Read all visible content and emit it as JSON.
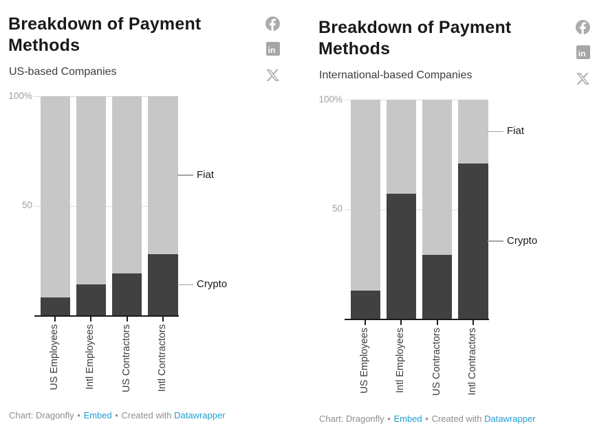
{
  "shared": {
    "colors": {
      "link_blue": "#1e9cd2",
      "crypto_dark": "#414141",
      "fiat_light": "#c7c7c7",
      "gridline": "#dcdcdc",
      "axis": "#1a1a1a"
    },
    "share_icons": [
      "facebook-icon",
      "linkedin-icon",
      "x-icon"
    ]
  },
  "chart_data": [
    {
      "type": "bar",
      "stacked": true,
      "title": "Breakdown of Payment Methods",
      "subtitle": "US-based Companies",
      "y_ticks": [
        "100%",
        "50"
      ],
      "ylim": [
        0,
        100
      ],
      "grid": true,
      "legend_position": "right",
      "categories": [
        "US Employees",
        "Intl Employees",
        "US Contractors",
        "Intl Contractors"
      ],
      "series": [
        {
          "name": "Crypto",
          "color": "#414141",
          "values": [
            8,
            14,
            19,
            28
          ]
        },
        {
          "name": "Fiat",
          "color": "#c7c7c7",
          "values": [
            92,
            86,
            81,
            72
          ]
        }
      ],
      "footer": {
        "source": "Chart: Dragonfly",
        "separator": "•",
        "embed": "Embed",
        "created": "Created with",
        "tool": "Datawrapper"
      }
    },
    {
      "type": "bar",
      "stacked": true,
      "title": "Breakdown of Payment Methods",
      "subtitle": "International-based Companies",
      "y_ticks": [
        "100%",
        "50"
      ],
      "ylim": [
        0,
        100
      ],
      "grid": true,
      "legend_position": "right",
      "categories": [
        "US Employees",
        "Intl Employees",
        "US Contractors",
        "Intl Contractors"
      ],
      "series": [
        {
          "name": "Crypto",
          "color": "#414141",
          "values": [
            13,
            57,
            29,
            71
          ]
        },
        {
          "name": "Fiat",
          "color": "#c7c7c7",
          "values": [
            87,
            43,
            71,
            29
          ]
        }
      ],
      "footer": {
        "source": "Chart: Dragonfly",
        "separator": "•",
        "embed": "Embed",
        "created": "Created with",
        "tool": "Datawrapper"
      }
    }
  ]
}
